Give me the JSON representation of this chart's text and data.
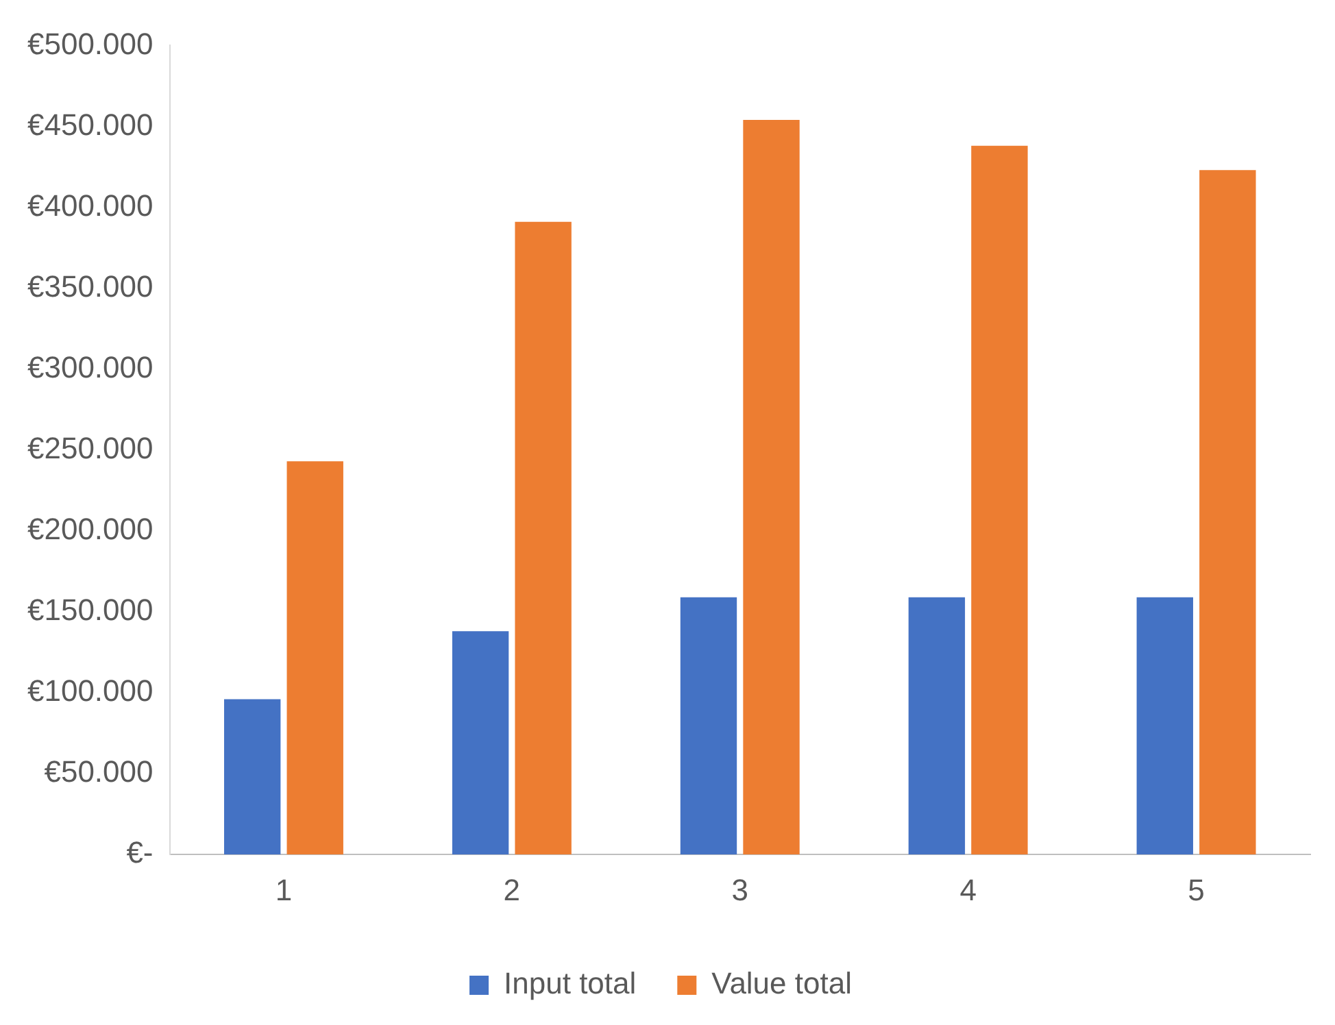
{
  "chart_data": {
    "type": "bar",
    "categories": [
      "1",
      "2",
      "3",
      "4",
      "5"
    ],
    "series": [
      {
        "name": "Input total",
        "color": "#4472c4",
        "values": [
          96000,
          138000,
          159000,
          159000,
          159000
        ]
      },
      {
        "name": "Value total",
        "color": "#ed7d31",
        "values": [
          243000,
          391000,
          454000,
          438000,
          423000
        ]
      }
    ],
    "ylim": [
      0,
      500000
    ],
    "yticks": [
      {
        "value": 0,
        "label": "€-"
      },
      {
        "value": 50000,
        "label": "€50.000"
      },
      {
        "value": 100000,
        "label": "€100.000"
      },
      {
        "value": 150000,
        "label": "€150.000"
      },
      {
        "value": 200000,
        "label": "€200.000"
      },
      {
        "value": 250000,
        "label": "€250.000"
      },
      {
        "value": 300000,
        "label": "€300.000"
      },
      {
        "value": 350000,
        "label": "€350.000"
      },
      {
        "value": 400000,
        "label": "€400.000"
      },
      {
        "value": 450000,
        "label": "€450.000"
      },
      {
        "value": 500000,
        "label": "€500.000"
      }
    ],
    "grid": false,
    "legend": "bottom"
  }
}
